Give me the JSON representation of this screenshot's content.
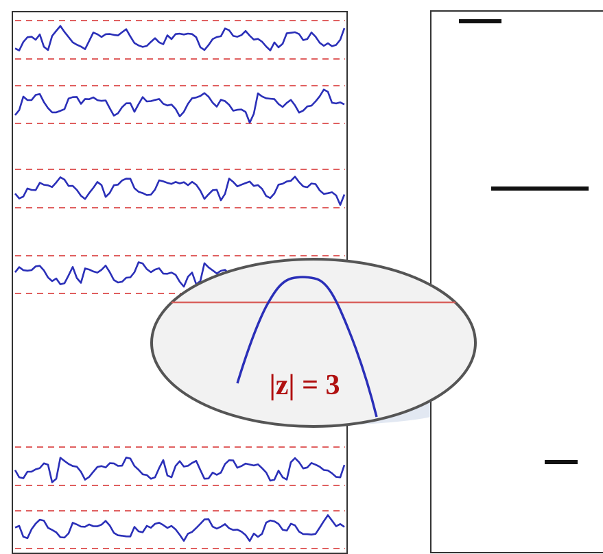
{
  "colors": {
    "signal": "#2a2fb8",
    "threshold": "#e06060",
    "zoom_threshold": "#d9625e",
    "panel_border": "#333333",
    "burst_mark": "#111111",
    "lens_fill": "#f2f2f2",
    "lens_border": "#555555",
    "shadow": "#dde4f0",
    "label": "#b01010"
  },
  "zoom_label": {
    "text": "|z| = 3"
  },
  "icons": {
    "left_panel": "eeg-multichannel-trace",
    "right_panel": "burst-detection-markers",
    "lens": "magnifier-ellipse"
  },
  "left_panel": {
    "channel_count": 6,
    "note": ""
  }
}
